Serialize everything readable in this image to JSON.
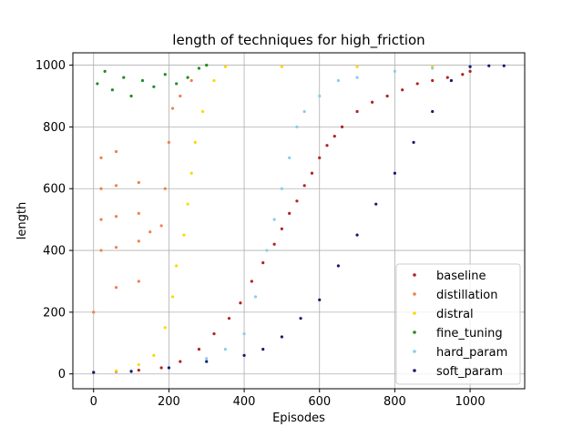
{
  "chart_data": {
    "type": "scatter",
    "title": "length of techniques for high_friction",
    "xlabel": "Episodes",
    "ylabel": "length",
    "xlim": [
      -55,
      1145
    ],
    "ylim": [
      -48,
      1040
    ],
    "xticks": [
      0,
      200,
      400,
      600,
      800,
      1000
    ],
    "yticks": [
      0,
      200,
      400,
      600,
      800,
      1000
    ],
    "grid": true,
    "legend_position": "lower-right",
    "series": [
      {
        "name": "baseline",
        "color": "#b22222",
        "description_points": [
          [
            0,
            5
          ],
          [
            60,
            8
          ],
          [
            120,
            12
          ],
          [
            180,
            20
          ],
          [
            230,
            40
          ],
          [
            280,
            80
          ],
          [
            320,
            130
          ],
          [
            360,
            180
          ],
          [
            390,
            230
          ],
          [
            420,
            300
          ],
          [
            450,
            360
          ],
          [
            480,
            420
          ],
          [
            500,
            470
          ],
          [
            520,
            520
          ],
          [
            540,
            560
          ],
          [
            560,
            610
          ],
          [
            580,
            650
          ],
          [
            600,
            700
          ],
          [
            620,
            740
          ],
          [
            640,
            770
          ],
          [
            660,
            800
          ],
          [
            700,
            850
          ],
          [
            740,
            880
          ],
          [
            780,
            900
          ],
          [
            820,
            920
          ],
          [
            860,
            940
          ],
          [
            900,
            950
          ],
          [
            940,
            960
          ],
          [
            980,
            970
          ],
          [
            1000,
            980
          ]
        ]
      },
      {
        "name": "distillation",
        "color": "#f08050",
        "description_points": [
          [
            0,
            200
          ],
          [
            20,
            400
          ],
          [
            20,
            500
          ],
          [
            20,
            600
          ],
          [
            20,
            700
          ],
          [
            60,
            280
          ],
          [
            60,
            410
          ],
          [
            60,
            510
          ],
          [
            60,
            610
          ],
          [
            60,
            720
          ],
          [
            120,
            300
          ],
          [
            120,
            430
          ],
          [
            120,
            520
          ],
          [
            120,
            620
          ],
          [
            150,
            460
          ],
          [
            180,
            480
          ],
          [
            190,
            600
          ],
          [
            200,
            750
          ],
          [
            210,
            860
          ],
          [
            230,
            900
          ],
          [
            260,
            950
          ],
          [
            300,
            1000
          ]
        ]
      },
      {
        "name": "distral",
        "color": "#ffd700",
        "description_points": [
          [
            0,
            5
          ],
          [
            60,
            10
          ],
          [
            120,
            30
          ],
          [
            160,
            60
          ],
          [
            190,
            150
          ],
          [
            210,
            250
          ],
          [
            220,
            350
          ],
          [
            240,
            450
          ],
          [
            250,
            550
          ],
          [
            260,
            650
          ],
          [
            270,
            750
          ],
          [
            290,
            850
          ],
          [
            320,
            950
          ],
          [
            350,
            995
          ],
          [
            500,
            995
          ],
          [
            700,
            995
          ],
          [
            900,
            995
          ]
        ]
      },
      {
        "name": "fine_tuning",
        "color": "#228b22",
        "description_points": [
          [
            10,
            940
          ],
          [
            30,
            980
          ],
          [
            50,
            920
          ],
          [
            80,
            960
          ],
          [
            100,
            900
          ],
          [
            130,
            950
          ],
          [
            160,
            930
          ],
          [
            190,
            970
          ],
          [
            220,
            940
          ],
          [
            250,
            960
          ],
          [
            280,
            990
          ],
          [
            300,
            1000
          ]
        ]
      },
      {
        "name": "hard_param",
        "color": "#87ceeb",
        "description_points": [
          [
            0,
            5
          ],
          [
            100,
            10
          ],
          [
            200,
            20
          ],
          [
            300,
            50
          ],
          [
            350,
            80
          ],
          [
            400,
            130
          ],
          [
            430,
            250
          ],
          [
            460,
            400
          ],
          [
            480,
            500
          ],
          [
            500,
            600
          ],
          [
            520,
            700
          ],
          [
            540,
            800
          ],
          [
            560,
            850
          ],
          [
            600,
            900
          ],
          [
            650,
            950
          ],
          [
            700,
            960
          ],
          [
            800,
            980
          ],
          [
            900,
            990
          ],
          [
            1000,
            995
          ]
        ]
      },
      {
        "name": "soft_param",
        "color": "#191970",
        "description_points": [
          [
            0,
            5
          ],
          [
            100,
            8
          ],
          [
            200,
            20
          ],
          [
            300,
            40
          ],
          [
            400,
            60
          ],
          [
            450,
            80
          ],
          [
            500,
            120
          ],
          [
            550,
            180
          ],
          [
            600,
            240
          ],
          [
            650,
            350
          ],
          [
            700,
            450
          ],
          [
            750,
            550
          ],
          [
            800,
            650
          ],
          [
            850,
            750
          ],
          [
            900,
            850
          ],
          [
            950,
            950
          ],
          [
            1000,
            995
          ],
          [
            1050,
            998
          ],
          [
            1090,
            998
          ]
        ]
      }
    ]
  }
}
